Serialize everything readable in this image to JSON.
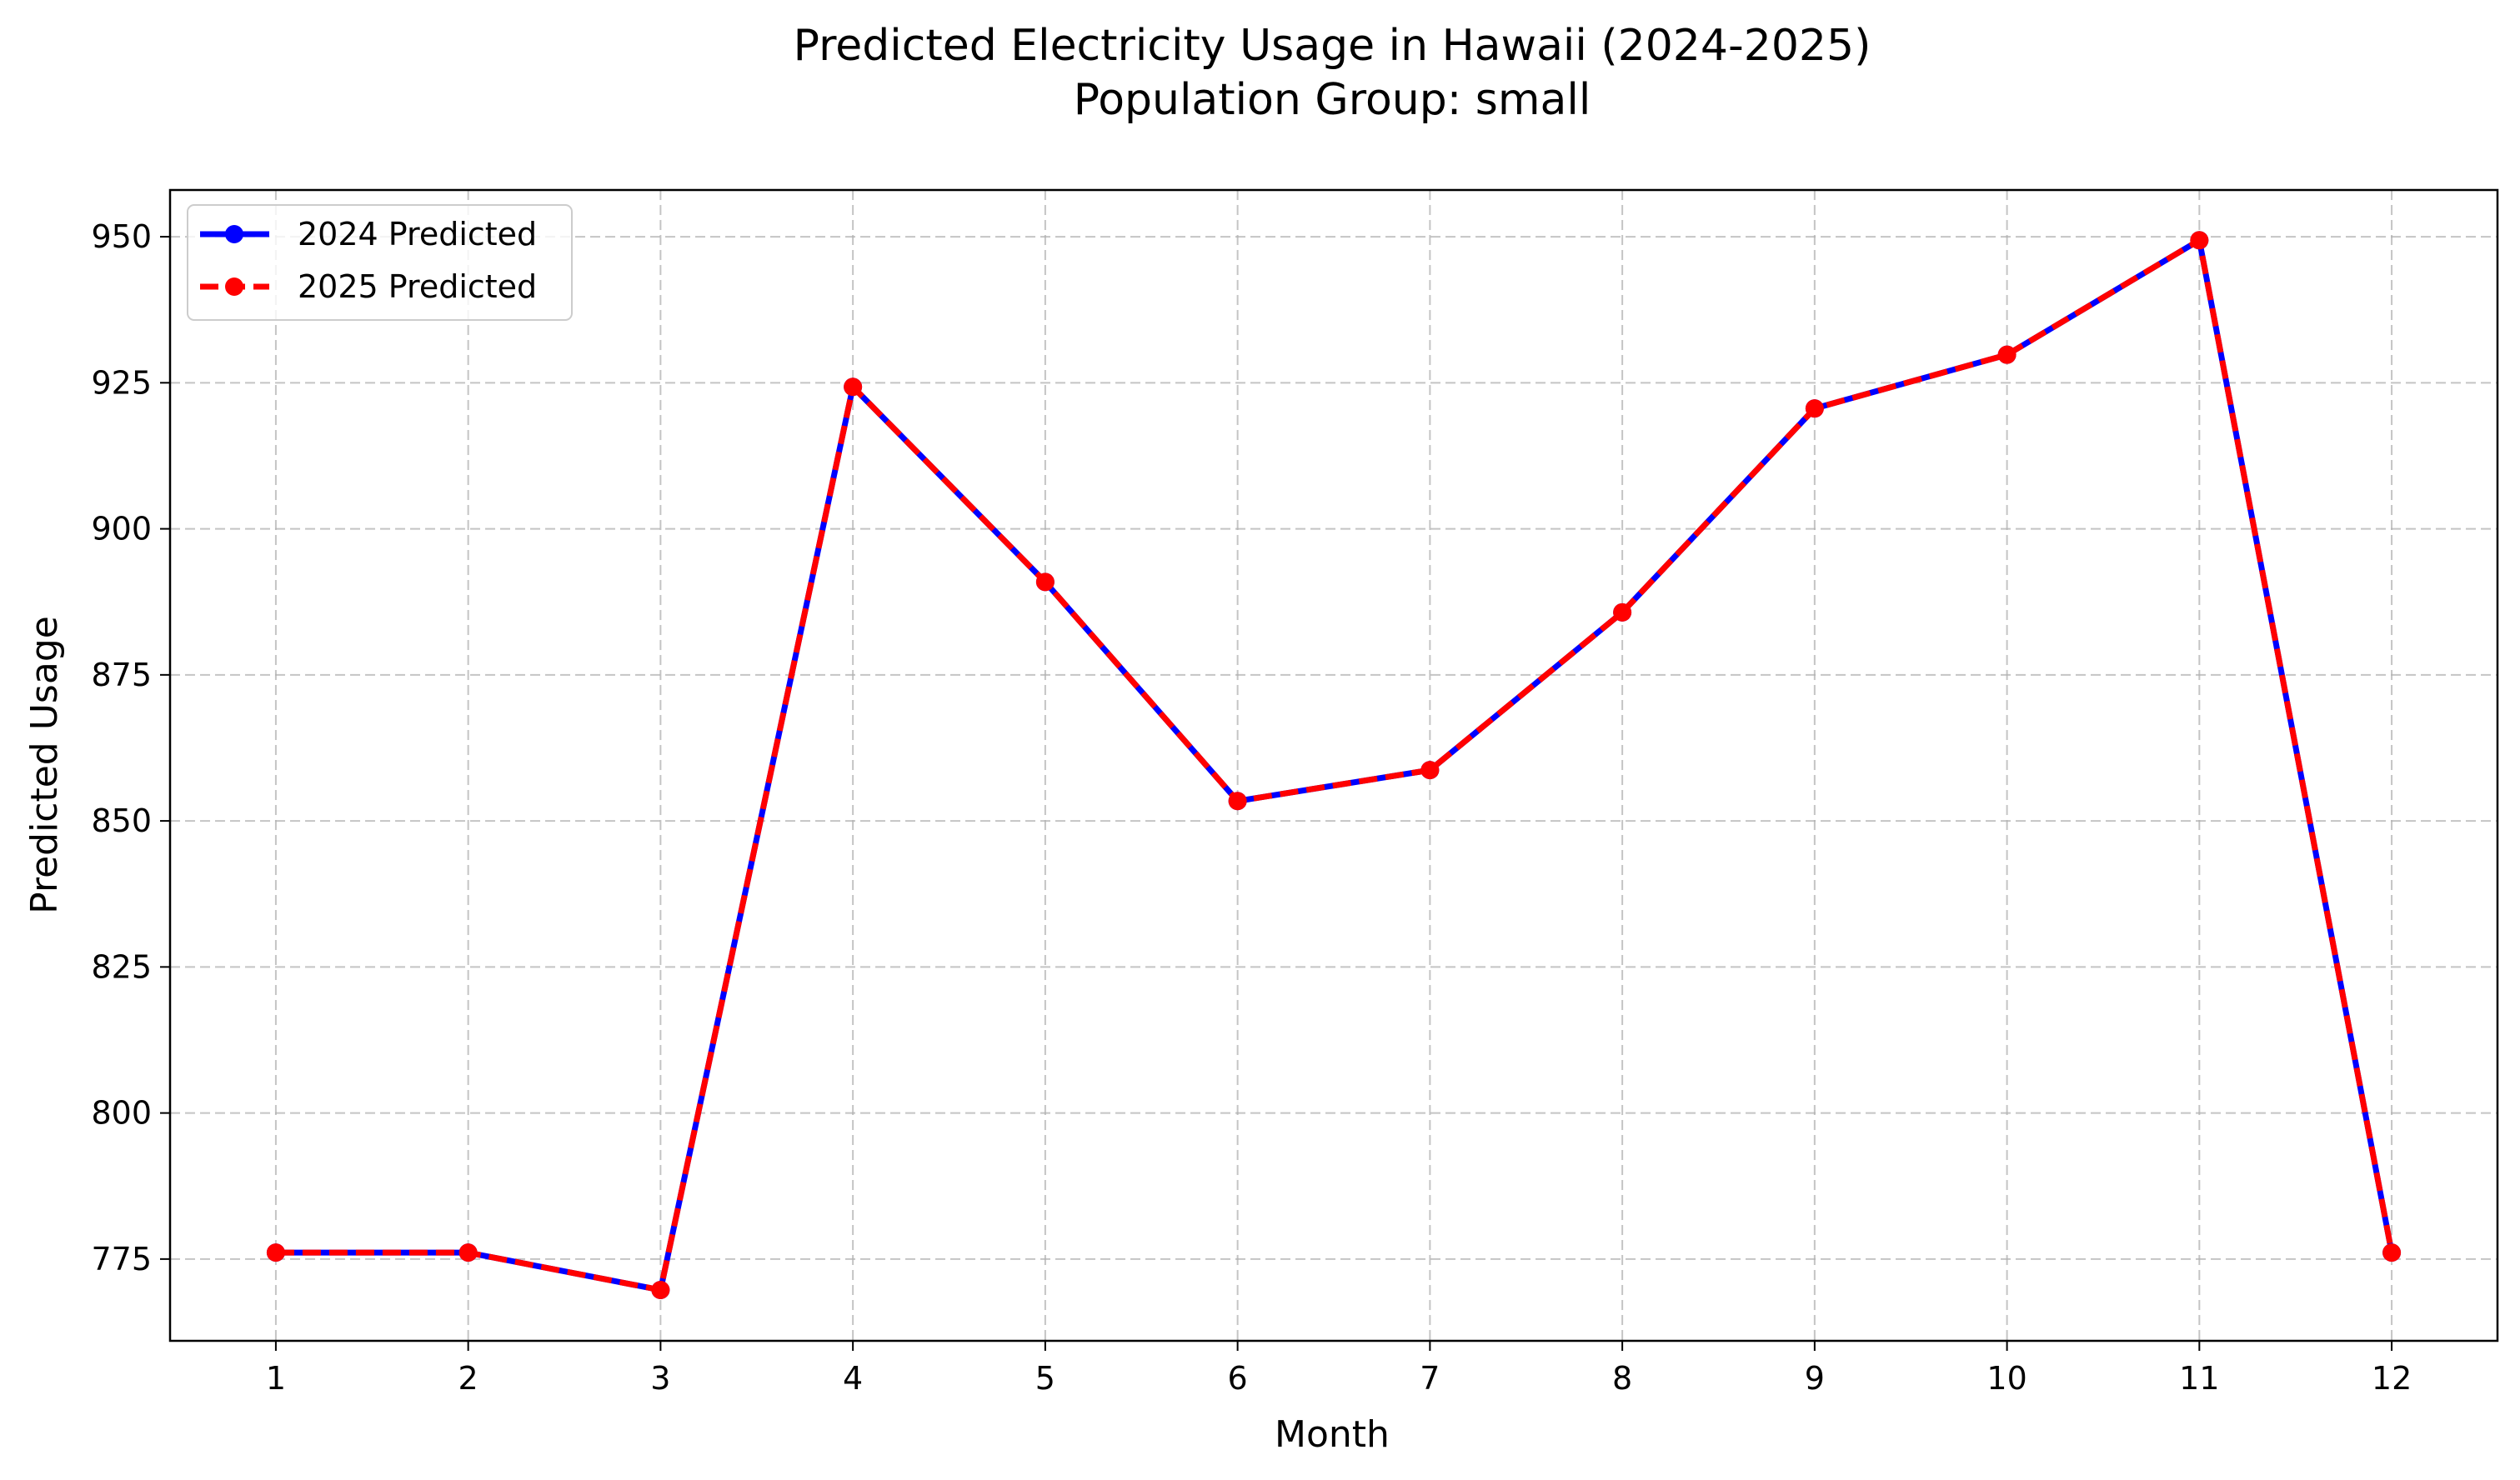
{
  "chart_data": {
    "type": "line",
    "title": "Predicted Electricity Usage in Hawaii (2024-2025)",
    "subtitle": "Population Group: small",
    "xlabel": "Month",
    "ylabel": "Predicted Usage",
    "x": [
      1,
      2,
      3,
      4,
      5,
      6,
      7,
      8,
      9,
      10,
      11,
      12
    ],
    "x_ticks": [
      "1",
      "2",
      "3",
      "4",
      "5",
      "6",
      "7",
      "8",
      "9",
      "10",
      "11",
      "12"
    ],
    "xlim": [
      0.45,
      12.55
    ],
    "y_ticks": [
      775,
      800,
      825,
      850,
      875,
      900,
      925,
      950
    ],
    "ylim": [
      761,
      958
    ],
    "grid": true,
    "legend_position": "upper-left",
    "series": [
      {
        "name": "2024 Predicted",
        "color": "#0000ff",
        "line_style": "solid",
        "marker": "circle",
        "values": [
          776.1,
          776.1,
          769.7,
          924.3,
          890.9,
          853.4,
          858.7,
          885.7,
          920.6,
          929.8,
          949.4,
          776.1
        ]
      },
      {
        "name": "2025 Predicted",
        "color": "#ff0000",
        "line_style": "dashed",
        "marker": "circle",
        "values": [
          776.1,
          776.1,
          769.7,
          924.3,
          890.9,
          853.4,
          858.7,
          885.7,
          920.6,
          929.8,
          949.4,
          776.1
        ]
      }
    ]
  }
}
